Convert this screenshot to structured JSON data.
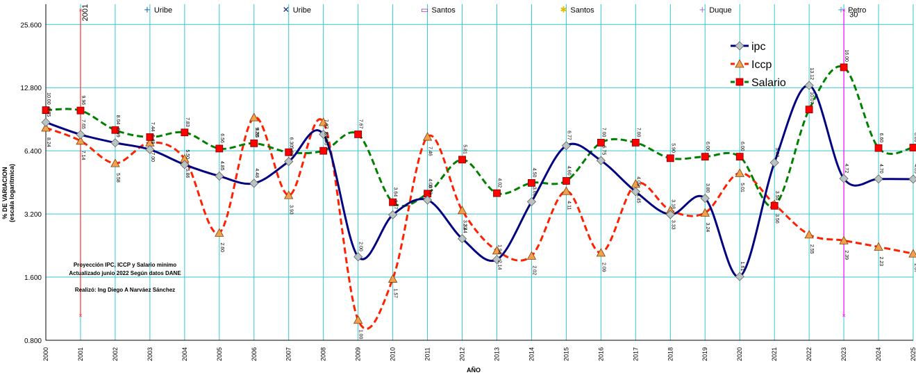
{
  "chart_data": {
    "type": "line",
    "ylabel_line1": "% DE VARIACION",
    "ylabel_line2": "(escala logaritmica)",
    "xlabel": "AÑO",
    "y_scale": "log2",
    "ylim": [
      0.8,
      32
    ],
    "y_ticks": [
      "0.800",
      "1.600",
      "3.200",
      "6.400",
      "12.800",
      "25.600"
    ],
    "y_tick_values": [
      0.8,
      1.6,
      3.2,
      6.4,
      12.8,
      25.6
    ],
    "x": [
      "2000",
      "2001",
      "2002",
      "2003",
      "2004",
      "2005",
      "2006",
      "2007",
      "2008",
      "2009",
      "2010",
      "2011",
      "2012",
      "2013",
      "2014",
      "2015",
      "2016",
      "2017",
      "2018",
      "2019",
      "2020",
      "2021",
      "2022",
      "2023",
      "2024",
      "2025"
    ],
    "grid": true,
    "series": [
      {
        "name": "ipc",
        "color": "#000080",
        "marker": "diamond",
        "marker_color": "#b8c4c4",
        "dash": "solid",
        "values": [
          8.75,
          7.65,
          6.99,
          6.49,
          5.5,
          4.85,
          4.48,
          5.69,
          7.67,
          2.0,
          3.17,
          3.73,
          2.44,
          1.94,
          3.66,
          6.77,
          5.75,
          4.09,
          3.18,
          3.8,
          1.61,
          5.62,
          13.12,
          4.72,
          4.7,
          4.69
        ],
        "labels": [
          "8.75",
          "7.65",
          "6.99",
          "6.49",
          "5.50",
          "4.85",
          "4.48",
          "5.69",
          "7.67",
          "2.00",
          "3.17",
          "3.73",
          "2.44",
          "1.94",
          "3.66",
          "6.77",
          "5.75",
          "4.09",
          "3.18",
          "3.80",
          "1.61",
          "5.62",
          "13.12",
          "4.72",
          "4.70",
          "4.69"
        ]
      },
      {
        "name": "Iccp",
        "color": "#ff2000",
        "marker": "triangle",
        "marker_color": "#f0a050",
        "dash": "dashed",
        "values": [
          8.24,
          7.14,
          5.58,
          7.0,
          5.86,
          2.6,
          9.23,
          3.93,
          8.76,
          1.0,
          1.57,
          7.46,
          3.33,
          2.14,
          2.02,
          4.11,
          2.09,
          4.45,
          3.33,
          3.24,
          5.01,
          3.56,
          2.55,
          2.39,
          2.23,
          2.07
        ],
        "labels": [
          "8.24",
          "7.14",
          "5.58",
          "7.00",
          "5.86",
          "2.60",
          "9.23",
          "3.93",
          "8.76",
          "1.00",
          "1.57",
          "7.46",
          "3.33",
          "2.14",
          "2.02",
          "4.11",
          "2.09",
          "4.45",
          "3.33",
          "3.24",
          "5.01",
          "3.56",
          "2.55",
          "2.39",
          "2.23",
          "2.07"
        ]
      },
      {
        "name": "Salario",
        "color": "#008000",
        "marker": "square",
        "marker_color": "#ff0000",
        "dash": "dashed",
        "values": [
          10.0,
          9.96,
          8.04,
          7.44,
          7.83,
          6.56,
          6.95,
          6.3,
          6.4,
          7.67,
          3.64,
          4.0,
          5.81,
          4.02,
          4.5,
          4.6,
          7.0,
          7.0,
          5.9,
          6.0,
          6.0,
          3.5,
          10.07,
          16.0,
          6.6,
          6.63
        ],
        "labels": [
          "10.00",
          "9.96",
          "8.04",
          "7.44",
          "7.83",
          "6.56",
          "6.95",
          "6.30",
          "6.40",
          "7.67",
          "3.64",
          "4.00",
          "5.81",
          "4.02",
          "4.50",
          "4.60",
          "7.00",
          "7.00",
          "5.90",
          "6.00",
          "6.00",
          "3.50",
          "10.07",
          "16.00",
          "6.60",
          "6.63"
        ]
      }
    ],
    "legend_position": "top-right",
    "presidents": [
      {
        "name": "Uribe",
        "x": "2003",
        "marker": "plus",
        "color": "#1060b0"
      },
      {
        "name": "Uribe",
        "x": "2007",
        "marker": "x",
        "color": "#1a1a80"
      },
      {
        "name": "Santos",
        "x": "2011",
        "marker": "box",
        "color": "#9030a0"
      },
      {
        "name": "Santos",
        "x": "2015",
        "marker": "star",
        "color": "#e0c000"
      },
      {
        "name": "Duque",
        "x": "2019",
        "marker": "plus",
        "color": "#a070d0"
      },
      {
        "name": "Petro",
        "x": "2023",
        "marker": "plus",
        "color": "#30a0c0"
      }
    ],
    "vlines": [
      {
        "x": "2001",
        "label": "2001",
        "color": "#ff3030",
        "top": 30,
        "bottom": 1.05
      },
      {
        "x": "2023",
        "label": "30",
        "color": "#ff00ff",
        "top": 30,
        "bottom": 1.05
      }
    ],
    "annotation_lines": [
      "Proyección IPC, ICCP y Salario minimo",
      "Actualizado  junio 2022 Según datos DANE",
      "Realizó: Ing Diego A Narváez Sánchez"
    ]
  }
}
